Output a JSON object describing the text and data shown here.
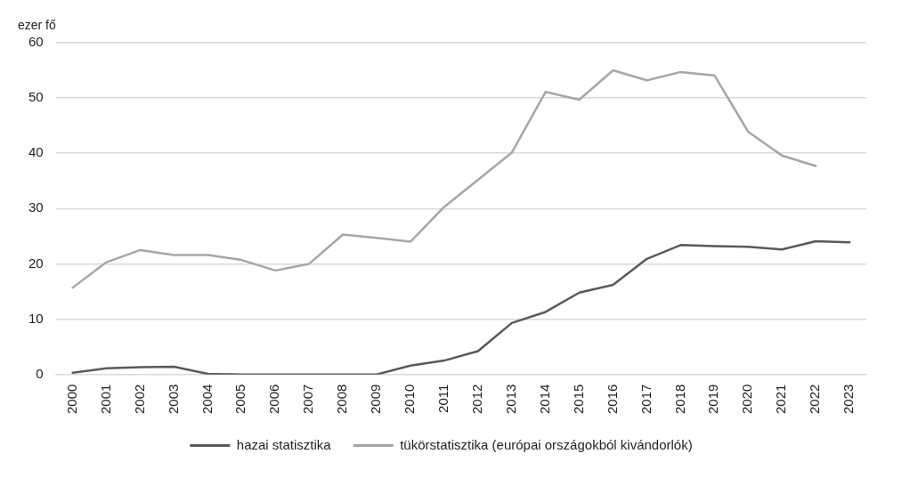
{
  "chart_data": {
    "type": "line",
    "ylabel": "ezer fő",
    "categories": [
      "2000",
      "2001",
      "2002",
      "2003",
      "2004",
      "2005",
      "2006",
      "2007",
      "2008",
      "2009",
      "2010",
      "2011",
      "2012",
      "2013",
      "2014",
      "2015",
      "2016",
      "2017",
      "2018",
      "2019",
      "2020",
      "2021",
      "2022",
      "2023"
    ],
    "series": [
      {
        "name": "hazai statisztika",
        "color": "#595959",
        "values": [
          0.3,
          1.1,
          1.3,
          1.4,
          0.1,
          0,
          0,
          0,
          0,
          0,
          1.6,
          2.5,
          4.2,
          9.3,
          11.3,
          14.8,
          16.2,
          20.9,
          23.4,
          23.2,
          23.1,
          22.6,
          24.1,
          23.9
        ]
      },
      {
        "name": "tükörstatisztika (európai országokból kivándorlók)",
        "color": "#a6a6a6",
        "values": [
          15.7,
          20.3,
          22.5,
          21.6,
          21.6,
          20.7,
          18.8,
          20.0,
          25.3,
          24.7,
          24.0,
          30.3,
          35.2,
          40.1,
          51.1,
          49.7,
          55.0,
          53.2,
          54.7,
          54.1,
          43.9,
          39.6,
          37.7,
          null
        ]
      }
    ],
    "ylim": [
      0,
      60
    ],
    "yticks": [
      0,
      10,
      20,
      30,
      40,
      50,
      60
    ],
    "grid": "y",
    "legend": "bottom",
    "marker": "none",
    "line_style": "solid"
  }
}
